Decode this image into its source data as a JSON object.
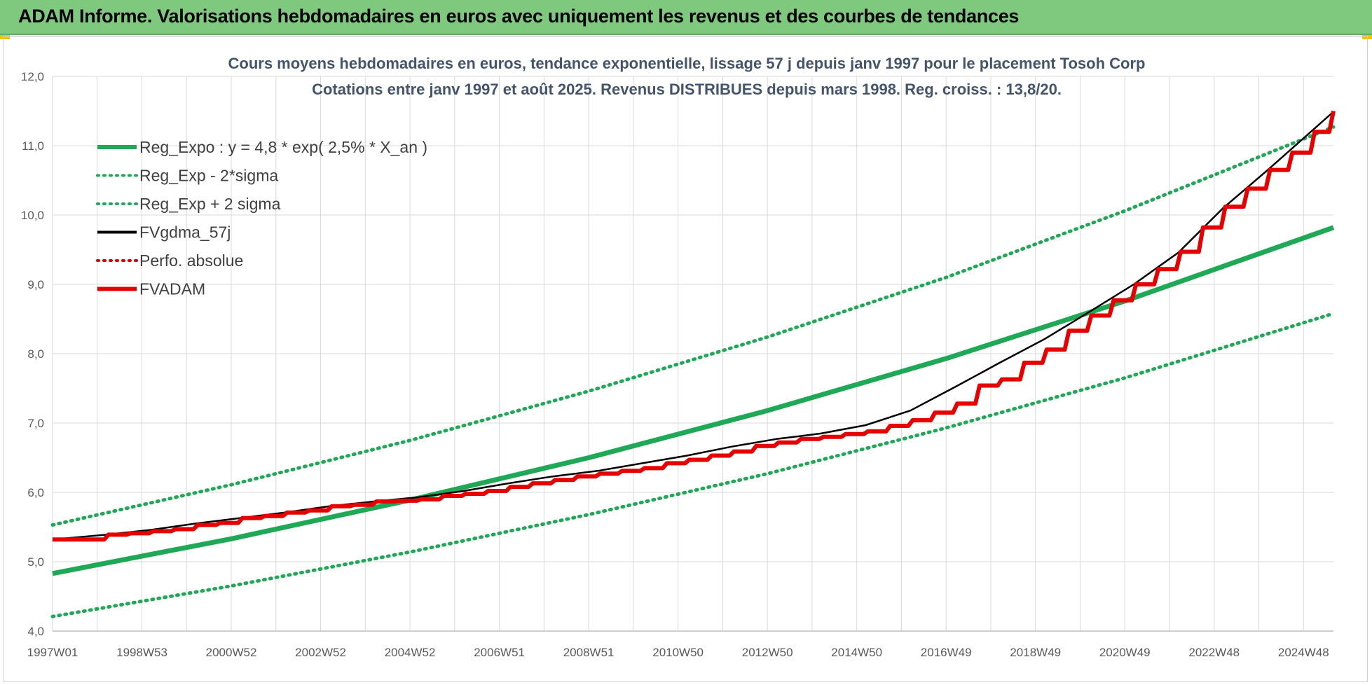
{
  "header": {
    "title": "ADAM Informe. Valorisations hebdomadaires en euros avec uniquement les revenus et des courbes de tendances"
  },
  "chart_data": {
    "type": "line",
    "title": "Cours moyens hebdomadaires en euros, tendance exponentielle, lissage 57 j depuis janv 1997 pour le placement Tosoh Corp",
    "subtitle": "Cotations entre janv 1997 et août 2025. Revenus DISTRIBUES depuis mars 1998. Reg. croiss. : 13,8/20.",
    "xlabel": "",
    "ylabel": "",
    "ylim": [
      4.0,
      12.0
    ],
    "y_ticks": [
      "4,0",
      "5,0",
      "6,0",
      "7,0",
      "8,0",
      "9,0",
      "10,0",
      "11,0",
      "12,0"
    ],
    "x_range_years": [
      1997.0,
      2025.67
    ],
    "x_tick_labels": [
      "1997W01",
      "1998W53",
      "2000W52",
      "2002W52",
      "2004W52",
      "2006W51",
      "2008W51",
      "2010W50",
      "2012W50",
      "2014W50",
      "2016W49",
      "2018W49",
      "2020W49",
      "2022W48",
      "2024W48"
    ],
    "grid": true,
    "legend_position": "top-left",
    "series": [
      {
        "name": "Reg_Expo : y = 4,8 * exp( 2,5% *  X_an )",
        "color": "#1fa855",
        "style": "solid-thick",
        "x": [
          1997,
          2001,
          2005,
          2009,
          2013,
          2017,
          2021,
          2025.67
        ],
        "values": [
          4.83,
          5.33,
          5.89,
          6.5,
          7.18,
          7.93,
          8.76,
          9.82
        ]
      },
      {
        "name": "Reg_Exp - 2*sigma",
        "color": "#1fa855",
        "style": "dotted",
        "x": [
          1997,
          2001,
          2005,
          2009,
          2013,
          2017,
          2021,
          2025.67
        ],
        "values": [
          4.21,
          4.65,
          5.14,
          5.68,
          6.27,
          6.93,
          7.65,
          8.58
        ]
      },
      {
        "name": "Reg_Exp + 2 sigma",
        "color": "#1fa855",
        "style": "dotted",
        "x": [
          1997,
          2001,
          2005,
          2009,
          2013,
          2017,
          2021,
          2025.67
        ],
        "values": [
          5.53,
          6.11,
          6.75,
          7.46,
          8.24,
          9.1,
          10.06,
          11.27
        ]
      },
      {
        "name": "FVgdma_57j",
        "color": "#000000",
        "style": "solid",
        "x": [
          1997,
          1998.2,
          1999.2,
          2000.2,
          2001.2,
          2002.2,
          2003.2,
          2004.2,
          2005.2,
          2006.2,
          2007.2,
          2008.2,
          2009.2,
          2010.2,
          2011.2,
          2012.2,
          2013.2,
          2014.2,
          2015.2,
          2016.2,
          2017.2,
          2018.2,
          2019.2,
          2020.2,
          2021.2,
          2022.2,
          2023.2,
          2024.2,
          2025.67
        ],
        "values": [
          5.32,
          5.39,
          5.46,
          5.55,
          5.63,
          5.71,
          5.8,
          5.87,
          5.93,
          6.02,
          6.13,
          6.23,
          6.31,
          6.42,
          6.53,
          6.66,
          6.77,
          6.85,
          6.97,
          7.18,
          7.52,
          7.87,
          8.21,
          8.6,
          9.0,
          9.46,
          10.1,
          10.65,
          11.49
        ]
      },
      {
        "name": "Perfo. absolue",
        "color": "#e00000",
        "style": "dotted",
        "x": [],
        "values": []
      },
      {
        "name": "FVADAM",
        "color": "#e60000",
        "style": "solid-thick",
        "x": [
          1997,
          1997.75,
          1998.25,
          1998.75,
          1999.25,
          1999.75,
          2000.25,
          2000.75,
          2001.25,
          2001.75,
          2002.25,
          2002.75,
          2003.25,
          2003.75,
          2004.25,
          2004.75,
          2005.25,
          2005.75,
          2006.25,
          2006.75,
          2007.25,
          2007.75,
          2008.25,
          2008.75,
          2009.25,
          2009.75,
          2010.25,
          2010.75,
          2011.25,
          2011.75,
          2012.25,
          2012.75,
          2013.25,
          2013.75,
          2014.25,
          2014.75,
          2015.25,
          2015.75,
          2016.25,
          2016.75,
          2017.25,
          2017.75,
          2018.25,
          2018.75,
          2019.25,
          2019.75,
          2020.25,
          2020.75,
          2021.25,
          2021.75,
          2022.25,
          2022.75,
          2023.25,
          2023.75,
          2024.25,
          2024.75,
          2025.25,
          2025.67
        ],
        "values": [
          5.32,
          5.32,
          5.39,
          5.41,
          5.44,
          5.47,
          5.53,
          5.56,
          5.63,
          5.66,
          5.71,
          5.74,
          5.8,
          5.82,
          5.87,
          5.88,
          5.9,
          5.95,
          5.98,
          6.02,
          6.08,
          6.13,
          6.18,
          6.23,
          6.27,
          6.31,
          6.35,
          6.42,
          6.47,
          6.53,
          6.59,
          6.67,
          6.72,
          6.77,
          6.8,
          6.84,
          6.88,
          6.96,
          7.04,
          7.15,
          7.28,
          7.54,
          7.63,
          7.87,
          8.06,
          8.33,
          8.55,
          8.77,
          9.0,
          9.22,
          9.47,
          9.82,
          10.12,
          10.38,
          10.65,
          10.9,
          11.2,
          11.5
        ]
      }
    ]
  }
}
